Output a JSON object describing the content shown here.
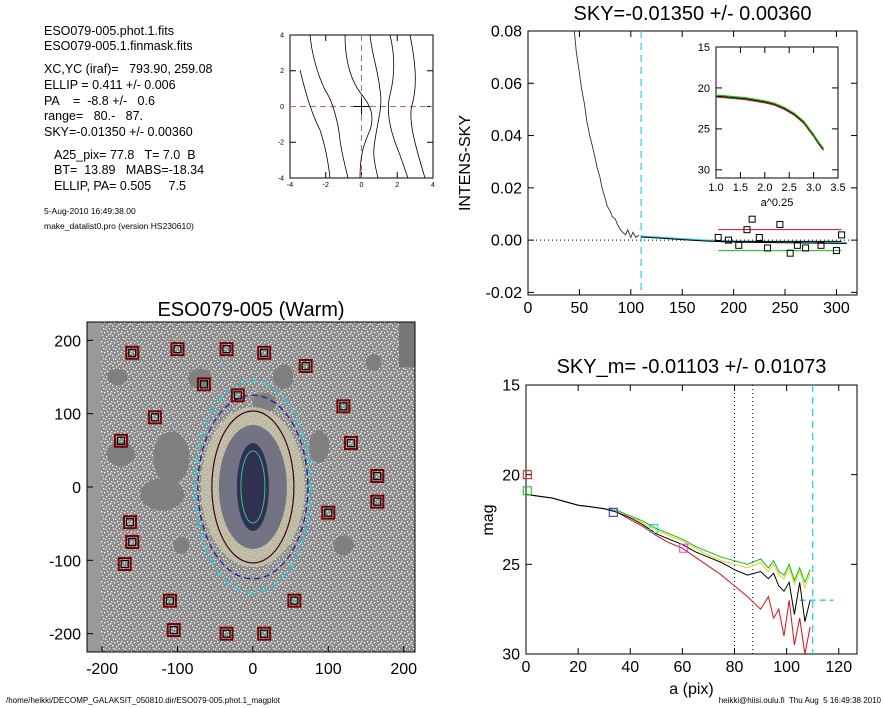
{
  "info": {
    "lines1": [
      "ESO079-005.phot.1.fits",
      "ESO079-005.1.finmask.fits"
    ],
    "lines2": [
      "XC,YC (iraf)=   793.90, 259.08",
      "ELLIP = 0.411 +/- 0.006",
      "PA    =  -8.8 +/-   0.6",
      "range=   80.-   87.",
      "SKY=-0.01350 +/- 0.00360"
    ],
    "lines3": [
      "A25_pix= 77.8   T= 7.0  B",
      "BT=  13.89   MABS=-18.34",
      "ELLIP, PA= 0.505     7.5"
    ],
    "date": "5-Aug-2010 16:49:38.00",
    "program": "make_datalist0.pro (version HS230610)"
  },
  "footer": {
    "left": "/home/heikki/DECOMP_GALAKSIT_050810.dir/ESO079-005.phot.1_magplot",
    "right": "heikki@hiisi.oulu.fi  Thu Aug  5 16:49:38 2010"
  },
  "colors": {
    "red": "#e01010",
    "green": "#10c010",
    "cyan": "#20d0e0",
    "blue": "#2020e0",
    "magenta": "#e040e0",
    "darkred": "#800000"
  },
  "chart_data": [
    {
      "id": "contour",
      "type": "contour",
      "title": "",
      "xlim": [
        -4,
        4
      ],
      "ylim": [
        -4,
        4
      ],
      "xticks": [
        "-4",
        "-2",
        "0",
        "2",
        "4"
      ],
      "yticks": [
        "-4",
        "-2",
        "0",
        "2",
        "4"
      ],
      "crosshair": [
        0,
        0
      ]
    },
    {
      "id": "sky",
      "type": "line",
      "title": "SKY=-0.01350 +/- 0.00360",
      "xlabel": "",
      "ylabel": "INTENS-SKY",
      "xlim": [
        0,
        320
      ],
      "ylim": [
        -0.021,
        0.08
      ],
      "xticks": [
        "0",
        "50",
        "100",
        "150",
        "200",
        "250",
        "300"
      ],
      "yticks": [
        "-0.02",
        "0.00",
        "0.02",
        "0.04",
        "0.06",
        "0.08"
      ],
      "profile_x": [
        45,
        47,
        50,
        52,
        55,
        57,
        60,
        62,
        65,
        67,
        70,
        72,
        75,
        77,
        80,
        82,
        85,
        87,
        90,
        92,
        95,
        97,
        100,
        102,
        105,
        108
      ],
      "profile_y": [
        0.08,
        0.072,
        0.064,
        0.058,
        0.052,
        0.046,
        0.04,
        0.037,
        0.032,
        0.028,
        0.024,
        0.02,
        0.016,
        0.013,
        0.011,
        0.009,
        0.008,
        0.006,
        0.004,
        0.003,
        0.002,
        0.004,
        0.001,
        0.003,
        0.001,
        0.002
      ],
      "tail_x": [
        110,
        130,
        150,
        170,
        190,
        210,
        230,
        250,
        270,
        290,
        310
      ],
      "tail_y": [
        0.0015,
        0.001,
        0.0005,
        0.0,
        -0.0003,
        -0.0005,
        -0.0006,
        -0.0007,
        -0.0008,
        -0.0009,
        -0.001
      ],
      "vline": 110,
      "box_x": [
        185,
        195,
        205,
        213,
        218,
        225,
        233,
        245,
        255,
        262,
        270,
        285,
        300,
        305
      ],
      "box_y": [
        0.001,
        0.0,
        -0.002,
        0.004,
        0.008,
        0.001,
        -0.003,
        0.006,
        -0.005,
        -0.002,
        -0.003,
        -0.002,
        -0.004,
        0.002
      ],
      "hlines": [
        {
          "y": 0.004,
          "x0": 185,
          "x1": 305,
          "color": "red"
        },
        {
          "y": -0.004,
          "x0": 185,
          "x1": 305,
          "color": "green"
        },
        {
          "y": -0.0005,
          "x0": 185,
          "x1": 305,
          "color": "black"
        }
      ],
      "inset": {
        "xlabel": "a^0.25",
        "xlim": [
          1.0,
          3.5
        ],
        "ylim": [
          15,
          31
        ],
        "xticks": [
          "1.0",
          "1.5",
          "2.0",
          "2.5",
          "3.0",
          "3.5"
        ],
        "yticks": [
          "15",
          "20",
          "25",
          "30"
        ],
        "curve_x": [
          1.0,
          1.2,
          1.4,
          1.6,
          1.8,
          2.0,
          2.2,
          2.4,
          2.6,
          2.8,
          2.9,
          3.0,
          3.1,
          3.2
        ],
        "curve_y": [
          21.0,
          21.1,
          21.2,
          21.3,
          21.5,
          21.7,
          22.0,
          22.5,
          23.2,
          24.2,
          25.0,
          25.8,
          26.7,
          27.5
        ]
      }
    },
    {
      "id": "image",
      "type": "image",
      "title": "ESO079-005 (Warm)",
      "xlim": [
        -220,
        215
      ],
      "ylim": [
        -225,
        225
      ],
      "xticks": [
        "-200",
        "-100",
        "0",
        "100",
        "200"
      ],
      "yticks": [
        "-200",
        "-100",
        "0",
        "100",
        "200"
      ],
      "markers": [
        [
          -160,
          183
        ],
        [
          -100,
          188
        ],
        [
          -35,
          188
        ],
        [
          15,
          183
        ],
        [
          70,
          165
        ],
        [
          -20,
          125
        ],
        [
          -130,
          95
        ],
        [
          -175,
          63
        ],
        [
          -163,
          -48
        ],
        [
          -160,
          -75
        ],
        [
          -110,
          -155
        ],
        [
          -170,
          -105
        ],
        [
          -105,
          -195
        ],
        [
          -35,
          -200
        ],
        [
          15,
          -200
        ],
        [
          55,
          -155
        ],
        [
          100,
          -35
        ],
        [
          130,
          60
        ],
        [
          165,
          -20
        ],
        [
          165,
          15
        ],
        [
          -65,
          140
        ],
        [
          120,
          110
        ]
      ],
      "ellipse_rx_outer": 60,
      "ellipse_ry_outer": 112,
      "ellipse_rx_inner": 55,
      "ellipse_ry_inner": 101
    },
    {
      "id": "mag",
      "type": "line",
      "title": "SKY_m= -0.01103 +/- 0.01073",
      "xlabel": "a (pix)",
      "ylabel": "mag",
      "xlim": [
        0,
        127
      ],
      "ylim": [
        15,
        30
      ],
      "xticks": [
        "0",
        "20",
        "40",
        "60",
        "80",
        "100",
        "120"
      ],
      "yticks": [
        "15",
        "20",
        "25",
        "30"
      ],
      "x": [
        0,
        5,
        10,
        15,
        20,
        25,
        30,
        35,
        40,
        45,
        50,
        55,
        60,
        65,
        70,
        75,
        80,
        85,
        90,
        93,
        95,
        97,
        99,
        101,
        103,
        105,
        107,
        109
      ],
      "series": [
        {
          "name": "",
          "color": "black",
          "values": [
            21.1,
            21.2,
            21.3,
            21.5,
            21.7,
            21.8,
            21.9,
            22.1,
            22.4,
            22.8,
            23.3,
            23.6,
            23.9,
            24.3,
            24.6,
            24.9,
            25.3,
            25.6,
            25.4,
            25.8,
            25.5,
            26.2,
            26.5,
            26.0,
            27.8,
            26.0,
            28.2,
            27.0
          ]
        },
        {
          "name": "",
          "color": "red",
          "values": [
            21.1,
            21.2,
            21.3,
            21.5,
            21.7,
            21.8,
            21.9,
            22.1,
            22.5,
            22.9,
            23.4,
            23.8,
            24.1,
            24.6,
            25.1,
            25.6,
            26.2,
            26.8,
            27.5,
            26.8,
            28.0,
            27.5,
            29.0,
            27.0,
            29.5,
            28.0,
            30.0,
            28.5
          ]
        },
        {
          "name": "",
          "color": "green",
          "values": [
            21.1,
            21.2,
            21.3,
            21.5,
            21.7,
            21.8,
            21.9,
            22.0,
            22.3,
            22.6,
            23.0,
            23.3,
            23.6,
            24.0,
            24.3,
            24.6,
            24.8,
            25.0,
            24.7,
            25.2,
            24.8,
            25.4,
            25.6,
            25.0,
            25.9,
            25.2,
            26.0,
            25.3
          ]
        },
        {
          "name": "",
          "color": "yellow",
          "values": [
            21.1,
            21.2,
            21.3,
            21.5,
            21.7,
            21.8,
            21.9,
            22.0,
            22.3,
            22.7,
            23.1,
            23.4,
            23.7,
            24.1,
            24.5,
            24.8,
            25.0,
            25.2,
            24.9,
            25.4,
            25.0,
            25.6,
            25.8,
            25.2,
            26.1,
            25.4,
            26.3,
            25.5
          ]
        }
      ],
      "sky_level": 27.0,
      "vlines_dotted": [
        80,
        87
      ],
      "vline_dashed": 110,
      "boxes": [
        {
          "x": 0.5,
          "y": 20.0,
          "color": "red"
        },
        {
          "x": 0.5,
          "y": 20.9,
          "color": "green"
        },
        {
          "x": 33.5,
          "y": 22.1,
          "color": "blue"
        },
        {
          "x": 49.0,
          "y": 23.0,
          "color": "cyan"
        },
        {
          "x": 60.5,
          "y": 24.1,
          "color": "magenta"
        }
      ]
    }
  ]
}
